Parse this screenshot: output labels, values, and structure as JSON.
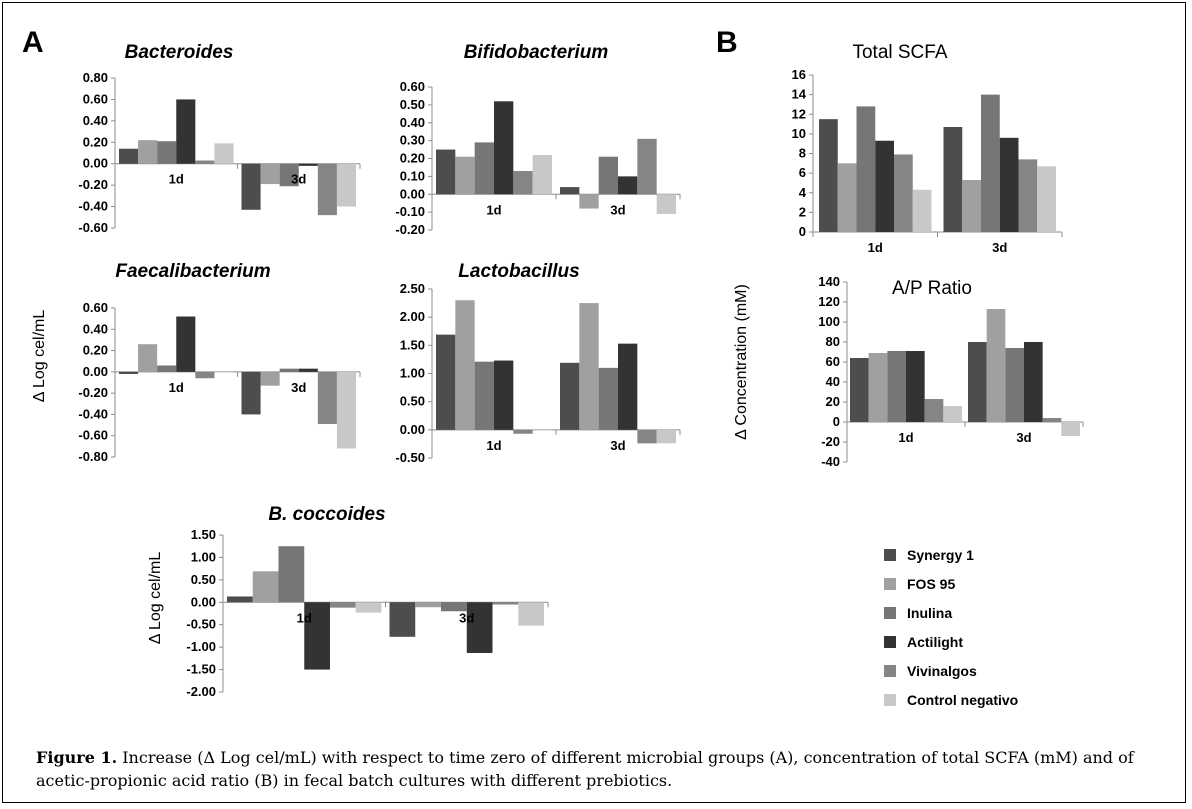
{
  "figure": {
    "panel_a": "A",
    "panel_b": "B",
    "ylabel_a_top": "Δ Log cel/mL",
    "ylabel_a_bottom": "Δ Log cel/mL",
    "ylabel_b": "Δ Concentration (mM)",
    "caption_bold": "Figure 1.",
    "caption_text": " Increase (Δ Log cel/mL) with respect to time zero of different microbial groups (A), concentration of total SCFA (mM) and of acetic-propionic acid ratio (B) in fecal batch cultures with different prebiotics."
  },
  "legend": [
    {
      "name": "Synergy 1",
      "color": "#4d4d4d"
    },
    {
      "name": "FOS 95",
      "color": "#a0a0a0"
    },
    {
      "name": "Inulina",
      "color": "#767676"
    },
    {
      "name": "Actilight",
      "color": "#333333"
    },
    {
      "name": "Vivinalgos",
      "color": "#858585"
    },
    {
      "name": "Control negativo",
      "color": "#c8c8c8"
    }
  ],
  "chart_data": [
    {
      "type": "bar",
      "title": "Bacteroides",
      "categories": [
        "1d",
        "3d"
      ],
      "ylim": [
        -0.6,
        0.8
      ],
      "yticks": [
        "0.80",
        "0.60",
        "0.40",
        "0.20",
        "0.00",
        "-0.20",
        "-0.40",
        "-0.60"
      ],
      "series": [
        {
          "name": "Synergy 1",
          "values": [
            0.14,
            -0.43
          ]
        },
        {
          "name": "FOS 95",
          "values": [
            0.22,
            -0.19
          ]
        },
        {
          "name": "Inulina",
          "values": [
            0.21,
            -0.21
          ]
        },
        {
          "name": "Actilight",
          "values": [
            0.6,
            -0.02
          ]
        },
        {
          "name": "Vivinalgos",
          "values": [
            0.03,
            -0.48
          ]
        },
        {
          "name": "Control negativo",
          "values": [
            0.19,
            -0.4
          ]
        }
      ]
    },
    {
      "type": "bar",
      "title": "Bifidobacterium",
      "categories": [
        "1d",
        "3d"
      ],
      "ylim": [
        -0.2,
        0.6
      ],
      "yticks": [
        "0.60",
        "0.50",
        "0.40",
        "0.30",
        "0.20",
        "0.10",
        "0.00",
        "-0.10",
        "-0.20"
      ],
      "series": [
        {
          "name": "Synergy 1",
          "values": [
            0.25,
            0.04
          ]
        },
        {
          "name": "FOS 95",
          "values": [
            0.21,
            -0.08
          ]
        },
        {
          "name": "Inulina",
          "values": [
            0.29,
            0.21
          ]
        },
        {
          "name": "Actilight",
          "values": [
            0.52,
            0.1
          ]
        },
        {
          "name": "Vivinalgos",
          "values": [
            0.13,
            0.31
          ]
        },
        {
          "name": "Control negativo",
          "values": [
            0.22,
            -0.11
          ]
        }
      ]
    },
    {
      "type": "bar",
      "title": "Faecalibacterium",
      "categories": [
        "1d",
        "3d"
      ],
      "ylim": [
        -0.8,
        0.6
      ],
      "yticks": [
        "0.60",
        "0.40",
        "0.20",
        "0.00",
        "-0.20",
        "-0.40",
        "-0.60",
        "-0.80"
      ],
      "series": [
        {
          "name": "Synergy 1",
          "values": [
            -0.02,
            -0.4
          ]
        },
        {
          "name": "FOS 95",
          "values": [
            0.26,
            -0.13
          ]
        },
        {
          "name": "Inulina",
          "values": [
            0.06,
            0.03
          ]
        },
        {
          "name": "Actilight",
          "values": [
            0.52,
            0.03
          ]
        },
        {
          "name": "Vivinalgos",
          "values": [
            -0.06,
            -0.49
          ]
        },
        {
          "name": "Control negativo",
          "values": [
            0.0,
            -0.72
          ]
        }
      ]
    },
    {
      "type": "bar",
      "title": "Lactobacillus",
      "categories": [
        "1d",
        "3d"
      ],
      "ylim": [
        -0.5,
        2.5
      ],
      "yticks": [
        "2.50",
        "2.00",
        "1.50",
        "1.00",
        "0.50",
        "0.00",
        "-0.50"
      ],
      "series": [
        {
          "name": "Synergy 1",
          "values": [
            1.69,
            1.19
          ]
        },
        {
          "name": "FOS 95",
          "values": [
            2.3,
            2.25
          ]
        },
        {
          "name": "Inulina",
          "values": [
            1.21,
            1.1
          ]
        },
        {
          "name": "Actilight",
          "values": [
            1.23,
            1.53
          ]
        },
        {
          "name": "Vivinalgos",
          "values": [
            -0.07,
            -0.24
          ]
        },
        {
          "name": "Control negativo",
          "values": [
            0.0,
            -0.24
          ]
        }
      ]
    },
    {
      "type": "bar",
      "title": "B. coccoides",
      "categories": [
        "1d",
        "3d"
      ],
      "ylim": [
        -2.0,
        1.5
      ],
      "yticks": [
        "1.50",
        "1.00",
        "0.50",
        "0.00",
        "-0.50",
        "-1.00",
        "-1.50",
        "-2.00"
      ],
      "series": [
        {
          "name": "Synergy 1",
          "values": [
            0.13,
            -0.77
          ]
        },
        {
          "name": "FOS 95",
          "values": [
            0.69,
            -0.11
          ]
        },
        {
          "name": "Inulina",
          "values": [
            1.25,
            -0.2
          ]
        },
        {
          "name": "Actilight",
          "values": [
            -1.5,
            -1.13
          ]
        },
        {
          "name": "Vivinalgos",
          "values": [
            -0.12,
            -0.05
          ]
        },
        {
          "name": "Control negativo",
          "values": [
            -0.23,
            -0.52
          ]
        }
      ]
    },
    {
      "type": "bar",
      "title": "Total SCFA",
      "categories": [
        "1d",
        "3d"
      ],
      "ylim": [
        0,
        16
      ],
      "yticks": [
        "16",
        "14",
        "12",
        "10",
        "8",
        "6",
        "4",
        "2",
        "0"
      ],
      "series": [
        {
          "name": "Synergy 1",
          "values": [
            11.5,
            10.7
          ]
        },
        {
          "name": "FOS 95",
          "values": [
            7.0,
            5.3
          ]
        },
        {
          "name": "Inulina",
          "values": [
            12.8,
            14.0
          ]
        },
        {
          "name": "Actilight",
          "values": [
            9.3,
            9.6
          ]
        },
        {
          "name": "Vivinalgos",
          "values": [
            7.9,
            7.4
          ]
        },
        {
          "name": "Control negativo",
          "values": [
            4.3,
            6.7
          ]
        }
      ]
    },
    {
      "type": "bar",
      "title": "A/P Ratio",
      "categories": [
        "1d",
        "3d"
      ],
      "ylim": [
        -40,
        140
      ],
      "yticks": [
        "140",
        "120",
        "100",
        "80",
        "60",
        "40",
        "20",
        "0",
        "-20",
        "-40"
      ],
      "series": [
        {
          "name": "Synergy 1",
          "values": [
            64,
            80
          ]
        },
        {
          "name": "FOS 95",
          "values": [
            69,
            113
          ]
        },
        {
          "name": "Inulina",
          "values": [
            71,
            74
          ]
        },
        {
          "name": "Actilight",
          "values": [
            71,
            80
          ]
        },
        {
          "name": "Vivinalgos",
          "values": [
            23,
            4
          ]
        },
        {
          "name": "Control negativo",
          "values": [
            16,
            -14
          ]
        }
      ]
    }
  ]
}
